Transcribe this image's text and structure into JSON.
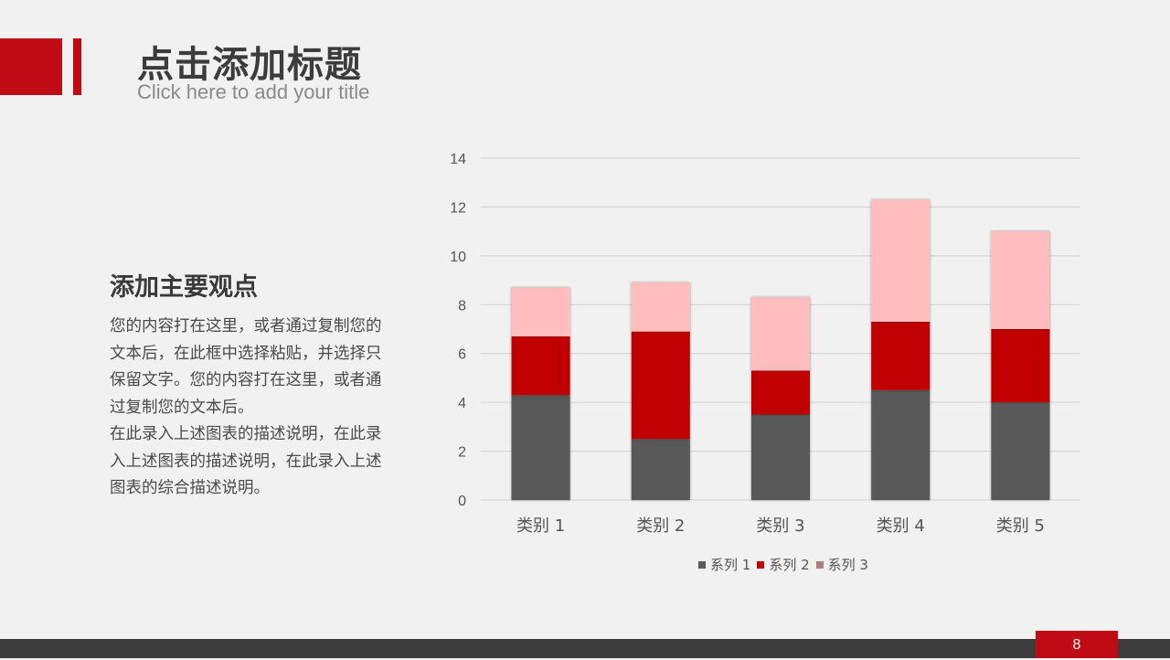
{
  "header": {
    "title": "点击添加标题",
    "subtitle": "Click here to add your title"
  },
  "content": {
    "heading": "添加主要观点",
    "paragraphs": [
      "您的内容打在这里，或者通过复制您的文本后，在此框中选择粘贴，并选择只保留文字。您的内容打在这里，或者通过复制您的文本后。",
      "在此录入上述图表的描述说明，在此录入上述图表的描述说明，在此录入上述图表的综合描述说明。"
    ]
  },
  "footer": {
    "page_number": "8"
  },
  "colors": {
    "accent": "#c10b14",
    "footer": "#3d3d3d",
    "background": "#f2f1f1"
  },
  "chart_data": {
    "type": "bar",
    "stacked": true,
    "categories": [
      "类别 1",
      "类别 2",
      "类别 3",
      "类别 4",
      "类别 5"
    ],
    "series": [
      {
        "name": "系列 1",
        "values": [
          4.3,
          2.5,
          3.5,
          4.5,
          4.0
        ],
        "color": "#595959"
      },
      {
        "name": "系列 2",
        "values": [
          2.4,
          4.4,
          1.8,
          2.8,
          3.0
        ],
        "color": "#c00000"
      },
      {
        "name": "系列 3",
        "values": [
          2.0,
          2.0,
          3.0,
          5.0,
          4.0
        ],
        "color": "#ffbdbd"
      }
    ],
    "yticks": [
      "0",
      "2",
      "4",
      "6",
      "8",
      "10",
      "12",
      "14"
    ],
    "ylim": [
      0,
      14
    ],
    "grid": true,
    "legend_position": "bottom"
  }
}
